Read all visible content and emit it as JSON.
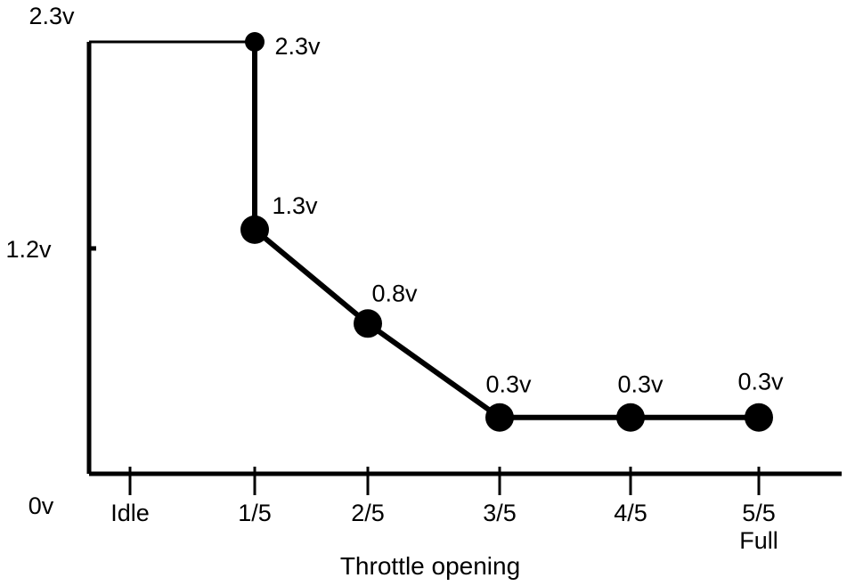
{
  "chart_data": {
    "type": "line",
    "xlabel": "Throttle opening",
    "categories": [
      "Idle",
      "1/5",
      "2/5",
      "3/5",
      "4/5",
      "5/5"
    ],
    "category_sublabels": [
      "",
      "",
      "",
      "",
      "",
      "Full"
    ],
    "y_ticks": [
      {
        "value": 0,
        "label": "0v"
      },
      {
        "value": 1.2,
        "label": "1.2v"
      },
      {
        "value": 2.3,
        "label": "2.3v"
      }
    ],
    "ylim": [
      0,
      2.3
    ],
    "grid": false,
    "series": [
      {
        "points": [
          {
            "x": "1/5",
            "y": 2.3,
            "label": "2.3v"
          },
          {
            "x": "1/5",
            "y": 1.3,
            "label": "1.3v"
          },
          {
            "x": "2/5",
            "y": 0.8,
            "label": "0.8v"
          },
          {
            "x": "3/5",
            "y": 0.3,
            "label": "0.3v"
          },
          {
            "x": "4/5",
            "y": 0.3,
            "label": "0.3v"
          },
          {
            "x": "5/5",
            "y": 0.3,
            "label": "0.3v"
          }
        ]
      }
    ],
    "reference_line": {
      "from_x": "axis",
      "to_x": "1/5",
      "y": 2.3
    }
  }
}
